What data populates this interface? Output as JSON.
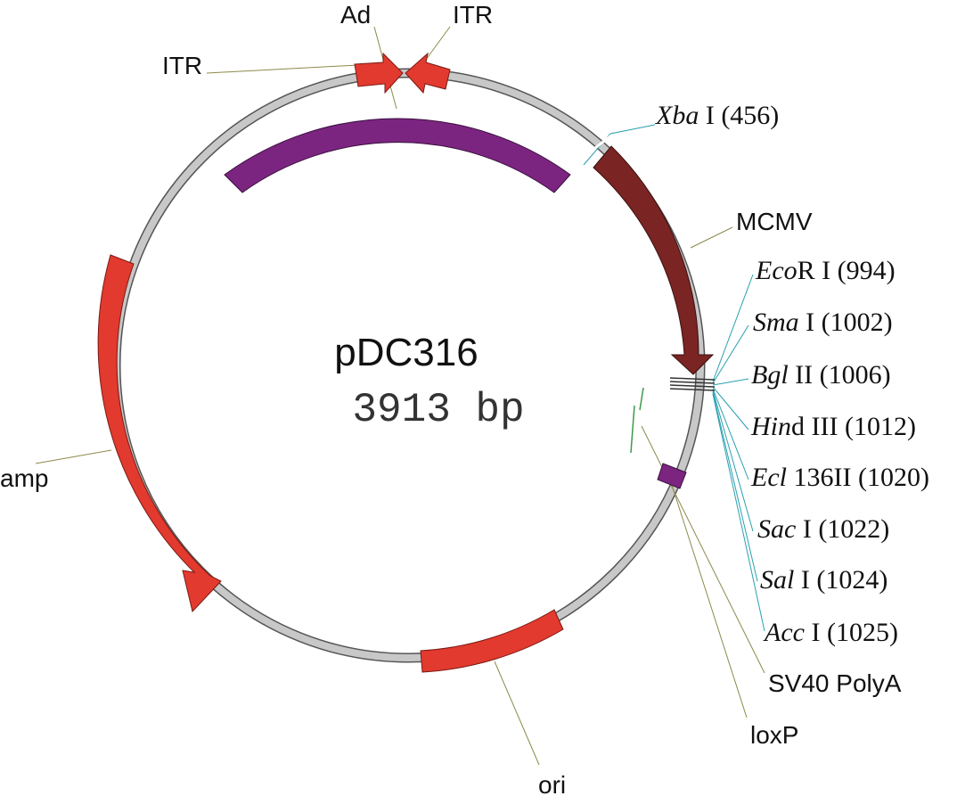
{
  "plasmid": {
    "name": "pDC316",
    "size": "3913 bp"
  },
  "features": {
    "itr_left": "ITR",
    "ad": "Ad",
    "itr_right": "ITR",
    "mcmv": "MCMV",
    "sv40_polya": "SV40 PolyA",
    "loxp": "loxP",
    "ori": "ori",
    "amp": "amp"
  },
  "restriction_sites": [
    {
      "enzyme_italic": "Xba",
      "rest": " I (456)"
    },
    {
      "enzyme_italic": "Eco",
      "rest": "R I (994)"
    },
    {
      "enzyme_italic": "Sma",
      "rest": " I (1002)"
    },
    {
      "enzyme_italic": "Bgl",
      "rest": " II (1006)"
    },
    {
      "enzyme_italic": "Hin",
      "rest": "d III (1012)"
    },
    {
      "enzyme_italic": "Ecl",
      "rest": " 136II (1020)"
    },
    {
      "enzyme_italic": "Sac",
      "rest": " I (1022)"
    },
    {
      "enzyme_italic": "Sal",
      "rest": " I (1024)"
    },
    {
      "enzyme_italic": "Acc",
      "rest": " I (1025)"
    }
  ],
  "colors": {
    "backbone": "#c8c8c8",
    "backbone_edge": "#555555",
    "red_feature": "#e23a2e",
    "purple_feature": "#7b2580",
    "mcmv": "#7a2424",
    "leader_olive": "#8c8a4a",
    "leader_teal": "#2aa0b0",
    "leader_green": "#3c9a4a"
  }
}
